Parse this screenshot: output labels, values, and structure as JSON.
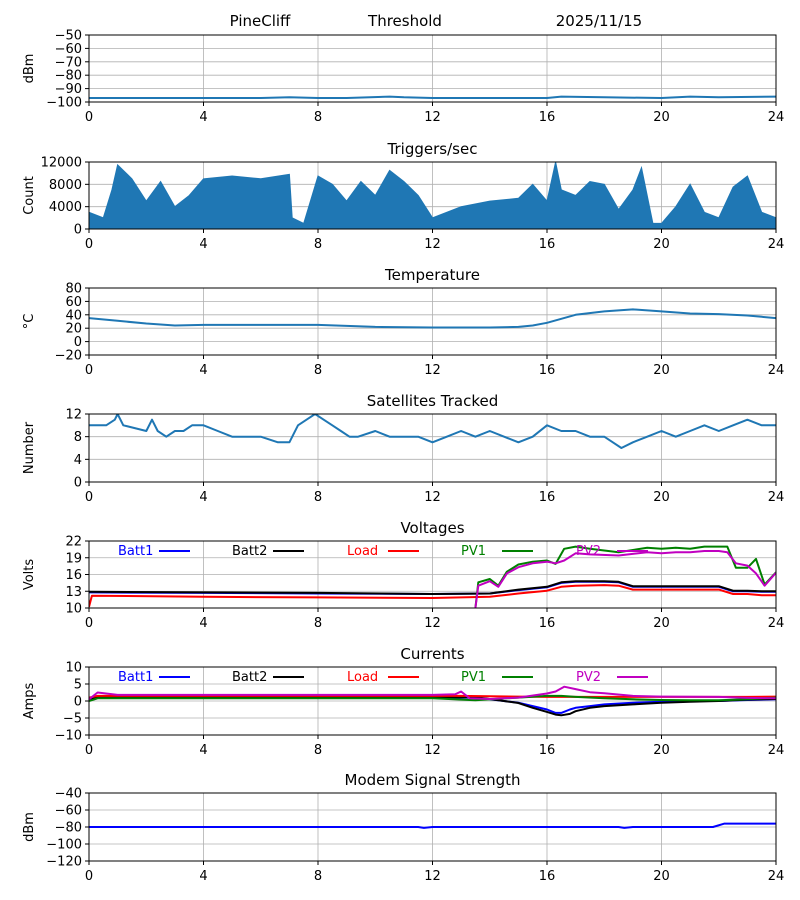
{
  "header": {
    "station": "PineCliff",
    "mode": "Threshold",
    "date": "2025/11/15"
  },
  "colors": {
    "series_default": "#1f77b4",
    "grid": "#b0b0b0",
    "batt1": "#0000ff",
    "batt2": "#000000",
    "load": "#ff0000",
    "pv1": "#008000",
    "pv2": "#c000c0",
    "modem": "#0000ff"
  },
  "chart_data": [
    {
      "id": "threshold",
      "type": "line",
      "title": "",
      "ylabel": "dBm",
      "xlim": [
        0,
        24
      ],
      "ylim": [
        -100,
        -50
      ],
      "xticks": [
        0,
        4,
        8,
        12,
        16,
        20,
        24
      ],
      "xtick_labels": [
        "0",
        "4",
        "8",
        "12",
        "16",
        "20",
        "24"
      ],
      "yticks": [
        -100,
        -90,
        -80,
        -70,
        -60,
        -50
      ],
      "ytick_labels": [
        "−100",
        "−90",
        "−80",
        "−70",
        "−60",
        "−50"
      ],
      "series": [
        {
          "name": "threshold",
          "color": "#1f77b4",
          "x": [
            0,
            2,
            4,
            6,
            7,
            8,
            9,
            10.5,
            11,
            12,
            14,
            16,
            16.5,
            18,
            20,
            21,
            22,
            24
          ],
          "y": [
            -97,
            -97,
            -97,
            -97,
            -96.5,
            -97,
            -97,
            -96,
            -96.5,
            -97,
            -97,
            -97,
            -96,
            -96.5,
            -97,
            -96,
            -96.5,
            -96
          ]
        }
      ]
    },
    {
      "id": "triggers",
      "type": "area",
      "title": "Triggers/sec",
      "ylabel": "Count",
      "xlim": [
        0,
        24
      ],
      "ylim": [
        0,
        12000
      ],
      "xticks": [
        0,
        4,
        8,
        12,
        16,
        20,
        24
      ],
      "xtick_labels": [
        "0",
        "4",
        "8",
        "12",
        "16",
        "20",
        "24"
      ],
      "yticks": [
        0,
        4000,
        8000,
        12000
      ],
      "ytick_labels": [
        "0",
        "4000",
        "8000",
        "12000"
      ],
      "series": [
        {
          "name": "triggers",
          "color": "#1f77b4",
          "x": [
            0,
            0.5,
            0.8,
            1.0,
            1.5,
            2.0,
            2.5,
            3.0,
            3.5,
            4.0,
            5.0,
            6.0,
            7.0,
            7.1,
            7.5,
            8.0,
            8.5,
            9.0,
            9.5,
            10.0,
            10.5,
            11.0,
            11.5,
            12.0,
            13.0,
            14.0,
            15.0,
            15.5,
            16.0,
            16.3,
            16.5,
            17.0,
            17.5,
            18.0,
            18.5,
            19.0,
            19.3,
            19.7,
            20.0,
            20.5,
            21.0,
            21.5,
            22.0,
            22.5,
            23.0,
            23.5,
            24.0
          ],
          "y": [
            3000,
            2000,
            7000,
            11500,
            9000,
            5000,
            8500,
            4000,
            6000,
            9000,
            9500,
            9000,
            9800,
            2000,
            1000,
            9500,
            8000,
            5000,
            8500,
            6000,
            10500,
            8500,
            6000,
            2000,
            4000,
            5000,
            5500,
            8000,
            5000,
            12000,
            7000,
            6000,
            8500,
            8000,
            3500,
            7000,
            11000,
            1000,
            1000,
            4000,
            8000,
            3000,
            2000,
            7500,
            9500,
            3000,
            2000
          ]
        }
      ]
    },
    {
      "id": "temperature",
      "type": "line",
      "title": "Temperature",
      "ylabel": "°C",
      "xlim": [
        0,
        24
      ],
      "ylim": [
        -20,
        80
      ],
      "xticks": [
        0,
        4,
        8,
        12,
        16,
        20,
        24
      ],
      "xtick_labels": [
        "0",
        "4",
        "8",
        "12",
        "16",
        "20",
        "24"
      ],
      "yticks": [
        -20,
        0,
        20,
        40,
        60,
        80
      ],
      "ytick_labels": [
        "−20",
        "0",
        "20",
        "40",
        "60",
        "80"
      ],
      "series": [
        {
          "name": "temperature",
          "color": "#1f77b4",
          "x": [
            0,
            1,
            2,
            3,
            4,
            6,
            8,
            10,
            12,
            14,
            15,
            15.5,
            16,
            16.5,
            17,
            18,
            19,
            20,
            21,
            22,
            23,
            23.5,
            24
          ],
          "y": [
            35,
            31,
            27,
            24,
            25,
            25,
            25,
            22,
            21,
            21,
            22,
            24,
            28,
            34,
            40,
            45,
            48,
            45,
            42,
            41,
            39,
            37,
            35
          ]
        }
      ]
    },
    {
      "id": "satellites",
      "type": "line",
      "title": "Satellites Tracked",
      "ylabel": "Number",
      "xlim": [
        0,
        24
      ],
      "ylim": [
        0,
        12
      ],
      "xticks": [
        0,
        4,
        8,
        12,
        16,
        20,
        24
      ],
      "xtick_labels": [
        "0",
        "4",
        "8",
        "12",
        "16",
        "20",
        "24"
      ],
      "yticks": [
        0,
        4,
        8,
        12
      ],
      "ytick_labels": [
        "0",
        "4",
        "8",
        "12"
      ],
      "series": [
        {
          "name": "satellites",
          "color": "#1f77b4",
          "x": [
            0,
            0.6,
            0.9,
            1.0,
            1.2,
            2.0,
            2.2,
            2.4,
            2.7,
            3.0,
            3.3,
            3.6,
            4.0,
            4.5,
            5.0,
            5.5,
            6.0,
            6.6,
            7.0,
            7.3,
            7.6,
            7.9,
            8.2,
            8.5,
            8.8,
            9.1,
            9.4,
            10.0,
            10.5,
            11.0,
            11.5,
            12.0,
            12.5,
            13.0,
            13.5,
            14.0,
            14.5,
            15.0,
            15.5,
            16.0,
            16.5,
            17.0,
            17.5,
            18.0,
            18.3,
            18.6,
            19.0,
            19.5,
            20.0,
            20.5,
            21.0,
            21.5,
            22.0,
            22.5,
            23.0,
            23.5,
            24.0
          ],
          "y": [
            10,
            10,
            11,
            12,
            10,
            9,
            11,
            9,
            8,
            9,
            9,
            10,
            10,
            9,
            8,
            8,
            8,
            7,
            7,
            10,
            11,
            12,
            11,
            10,
            9,
            8,
            8,
            9,
            8,
            8,
            8,
            7,
            8,
            9,
            8,
            9,
            8,
            7,
            8,
            10,
            9,
            9,
            8,
            8,
            7,
            6,
            7,
            8,
            9,
            8,
            9,
            10,
            9,
            10,
            11,
            10,
            10
          ]
        }
      ]
    },
    {
      "id": "voltages",
      "type": "line",
      "title": "Voltages",
      "ylabel": "Volts",
      "xlim": [
        0,
        24
      ],
      "ylim": [
        10,
        22
      ],
      "xticks": [
        0,
        4,
        8,
        12,
        16,
        20,
        24
      ],
      "xtick_labels": [
        "0",
        "4",
        "8",
        "12",
        "16",
        "20",
        "24"
      ],
      "yticks": [
        10,
        13,
        16,
        19,
        22
      ],
      "ytick_labels": [
        "10",
        "13",
        "16",
        "19",
        "22"
      ],
      "legend": [
        "Batt1",
        "Batt2",
        "Load",
        "PV1",
        "PV2"
      ],
      "series": [
        {
          "name": "Batt1",
          "color": "#0000ff",
          "x": [
            0,
            4,
            8,
            12,
            14,
            15,
            16,
            16.5,
            17,
            18,
            18.5,
            19,
            20,
            22,
            22.5,
            23,
            23.5,
            24
          ],
          "y": [
            12.8,
            12.7,
            12.6,
            12.5,
            12.6,
            13.2,
            13.7,
            14.5,
            14.7,
            14.7,
            14.6,
            13.8,
            13.8,
            13.8,
            13.0,
            13.0,
            12.9,
            12.9
          ]
        },
        {
          "name": "Batt2",
          "color": "#000000",
          "x": [
            0,
            4,
            8,
            12,
            14,
            15,
            16,
            16.5,
            17,
            18,
            18.5,
            19,
            20,
            22,
            22.5,
            23,
            23.5,
            24
          ],
          "y": [
            12.9,
            12.8,
            12.7,
            12.5,
            12.6,
            13.3,
            13.8,
            14.6,
            14.8,
            14.8,
            14.7,
            13.9,
            13.9,
            13.9,
            13.1,
            13.1,
            13.0,
            13.0
          ]
        },
        {
          "name": "Load",
          "color": "#ff0000",
          "x": [
            0,
            0.1,
            4,
            8,
            12,
            14,
            15,
            16,
            16.5,
            17,
            18,
            18.5,
            19,
            20,
            22,
            22.5,
            23,
            23.5,
            24
          ],
          "y": [
            10.2,
            12.2,
            12.0,
            11.9,
            11.8,
            12.0,
            12.6,
            13.1,
            13.8,
            14.0,
            14.1,
            14.0,
            13.3,
            13.3,
            13.3,
            12.5,
            12.5,
            12.3,
            12.3
          ]
        },
        {
          "name": "PV1",
          "color": "#008000",
          "x": [
            13.5,
            13.6,
            14.0,
            14.3,
            14.6,
            15.0,
            15.5,
            16.0,
            16.3,
            16.6,
            17.0,
            17.5,
            18.5,
            19.5,
            20.0,
            20.5,
            21.0,
            21.5,
            22.0,
            22.3,
            22.6,
            23.0,
            23.3,
            23.6,
            24.0
          ],
          "y": [
            10.0,
            14.6,
            15.2,
            14.0,
            16.5,
            17.8,
            18.3,
            18.5,
            17.9,
            20.6,
            21.0,
            20.6,
            20.0,
            20.8,
            20.6,
            20.8,
            20.6,
            21.0,
            21.0,
            21.0,
            17.2,
            17.2,
            18.8,
            14.2,
            16.4
          ]
        },
        {
          "name": "PV2",
          "color": "#c000c0",
          "x": [
            13.5,
            13.6,
            14.0,
            14.3,
            14.6,
            15.0,
            15.5,
            16.0,
            16.3,
            16.6,
            17.0,
            17.5,
            18.5,
            19.5,
            20.0,
            20.5,
            21.0,
            21.5,
            22.0,
            22.3,
            22.6,
            23.0,
            23.3,
            23.6,
            24.0
          ],
          "y": [
            10.0,
            14.0,
            14.8,
            13.8,
            16.2,
            17.3,
            18.0,
            18.3,
            18.0,
            18.5,
            19.8,
            19.6,
            19.4,
            20.0,
            19.8,
            20.0,
            20.0,
            20.2,
            20.2,
            20.0,
            18.0,
            17.6,
            16.2,
            14.0,
            16.3
          ]
        }
      ]
    },
    {
      "id": "currents",
      "type": "line",
      "title": "Currents",
      "ylabel": "Amps",
      "xlim": [
        0,
        24
      ],
      "ylim": [
        -10,
        10
      ],
      "xticks": [
        0,
        4,
        8,
        12,
        16,
        20,
        24
      ],
      "xtick_labels": [
        "0",
        "4",
        "8",
        "12",
        "16",
        "20",
        "24"
      ],
      "yticks": [
        -10,
        -5,
        0,
        5,
        10
      ],
      "ytick_labels": [
        "−10",
        "−5",
        "0",
        "5",
        "10"
      ],
      "legend": [
        "Batt1",
        "Batt2",
        "Load",
        "PV1",
        "PV2"
      ],
      "series": [
        {
          "name": "Batt1",
          "color": "#0000ff",
          "x": [
            0,
            0.3,
            4,
            8,
            12,
            13.5,
            14,
            15,
            15.5,
            16,
            16.3,
            16.5,
            16.8,
            17,
            17.5,
            18,
            19,
            20,
            21,
            22,
            23,
            24
          ],
          "y": [
            0.5,
            1.0,
            1.0,
            1.0,
            1.0,
            1.0,
            0.5,
            -0.5,
            -1.5,
            -2.5,
            -3.5,
            -3.5,
            -2.5,
            -2.0,
            -1.5,
            -1.0,
            -0.5,
            -0.2,
            0,
            0,
            0.3,
            0.5
          ]
        },
        {
          "name": "Batt2",
          "color": "#000000",
          "x": [
            0,
            0.3,
            4,
            8,
            12,
            13.5,
            14,
            15,
            15.5,
            16,
            16.3,
            16.5,
            16.8,
            17,
            17.5,
            18,
            19,
            20,
            21,
            22,
            23,
            24
          ],
          "y": [
            0.6,
            1.1,
            1.1,
            1.1,
            1.1,
            1.1,
            0.6,
            -0.6,
            -2.0,
            -3.2,
            -4.0,
            -4.2,
            -3.8,
            -3.0,
            -2.0,
            -1.5,
            -1.0,
            -0.5,
            -0.2,
            0,
            0.4,
            0.6
          ]
        },
        {
          "name": "Load",
          "color": "#ff0000",
          "x": [
            0,
            0.3,
            4,
            8,
            12,
            13,
            14,
            15,
            16,
            17,
            18,
            20,
            22,
            23,
            24
          ],
          "y": [
            1.0,
            1.5,
            1.5,
            1.5,
            1.5,
            1.5,
            1.4,
            1.3,
            1.2,
            1.2,
            1.2,
            1.2,
            1.2,
            1.2,
            1.3
          ]
        },
        {
          "name": "PV1",
          "color": "#008000",
          "x": [
            0,
            0.3,
            4,
            8,
            12,
            13.5,
            14,
            15,
            16,
            16.5,
            17,
            18,
            19,
            20,
            21,
            22,
            23,
            24
          ],
          "y": [
            0.0,
            0.8,
            0.8,
            0.8,
            0.8,
            0.2,
            0.5,
            1.0,
            1.5,
            1.5,
            1.2,
            0.8,
            0.5,
            0.3,
            0.2,
            0.2,
            0.5,
            1.0
          ]
        },
        {
          "name": "PV2",
          "color": "#c000c0",
          "x": [
            0,
            0.3,
            1,
            4,
            8,
            12,
            12.8,
            13.0,
            13.3,
            14,
            15,
            16,
            16.3,
            16.6,
            17,
            17.5,
            18,
            19,
            20,
            22,
            23,
            24
          ],
          "y": [
            0.5,
            2.5,
            1.8,
            1.8,
            1.8,
            1.8,
            2.0,
            2.8,
            0.8,
            0.6,
            1.0,
            2.2,
            2.8,
            4.2,
            3.5,
            2.6,
            2.3,
            1.5,
            1.3,
            1.2,
            0.9,
            0.8
          ]
        }
      ]
    },
    {
      "id": "modem",
      "type": "line",
      "title": "Modem Signal Strength",
      "ylabel": "dBm",
      "xlim": [
        0,
        24
      ],
      "ylim": [
        -120,
        -40
      ],
      "xticks": [
        0,
        4,
        8,
        12,
        16,
        20,
        24
      ],
      "xtick_labels": [
        "0",
        "4",
        "8",
        "12",
        "16",
        "20",
        "24"
      ],
      "yticks": [
        -120,
        -100,
        -80,
        -60,
        -40
      ],
      "ytick_labels": [
        "−120",
        "−100",
        "−80",
        "−60",
        "−40"
      ],
      "series": [
        {
          "name": "modem",
          "color": "#0000ff",
          "x": [
            0,
            11.5,
            11.7,
            12,
            18.5,
            18.7,
            19,
            21.8,
            22.2,
            24
          ],
          "y": [
            -80,
            -80,
            -81,
            -80,
            -80,
            -81,
            -80,
            -80,
            -76,
            -76
          ]
        }
      ]
    }
  ]
}
